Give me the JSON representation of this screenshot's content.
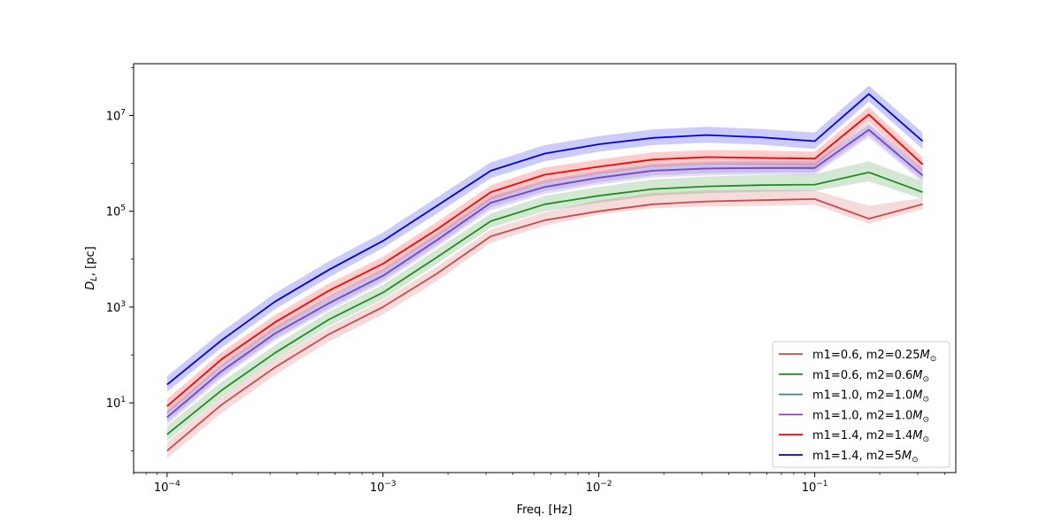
{
  "chart_data": {
    "type": "line",
    "title": "",
    "xlabel": "Freq. [Hz]",
    "ylabel_main": "D",
    "ylabel_sub": "L",
    "ylabel_rest": ", [pc]",
    "x_scale": "log",
    "y_scale": "log",
    "xlim": [
      7e-05,
      0.45
    ],
    "ylim": [
      0.35,
      120000000
    ],
    "grid": false,
    "legend_position": "bottom-right",
    "x_ticks": [
      {
        "value": 0.0001,
        "base": "10",
        "exp": "−4"
      },
      {
        "value": 0.001,
        "base": "10",
        "exp": "−3"
      },
      {
        "value": 0.01,
        "base": "10",
        "exp": "−2"
      },
      {
        "value": 0.1,
        "base": "10",
        "exp": "−1"
      }
    ],
    "y_ticks": [
      {
        "value": 10,
        "base": "10",
        "exp": "1"
      },
      {
        "value": 1000,
        "base": "10",
        "exp": "3"
      },
      {
        "value": 100000,
        "base": "10",
        "exp": "5"
      },
      {
        "value": 10000000,
        "base": "10",
        "exp": "7"
      }
    ],
    "x": [
      0.0001,
      0.000178,
      0.000316,
      0.000562,
      0.001,
      0.00178,
      0.00316,
      0.00562,
      0.01,
      0.0178,
      0.0316,
      0.0562,
      0.1,
      0.178,
      0.316
    ],
    "series": [
      {
        "label_main": "m1=0.6, m2=0.25",
        "label_sub": "⊙",
        "color": "#cd4a4a",
        "values": [
          1.0,
          9,
          55,
          270,
          1000,
          5000,
          30000,
          65000,
          100000,
          140000,
          160000,
          170000,
          180000,
          70000,
          140000
        ],
        "band_low": [
          0.7,
          6,
          38,
          190,
          700,
          3500,
          22000,
          50000,
          85000,
          115000,
          125000,
          130000,
          135000,
          55000,
          110000
        ],
        "band_high": [
          1.5,
          13,
          80,
          380,
          1400,
          7000,
          42000,
          95000,
          170000,
          240000,
          270000,
          280000,
          270000,
          130000,
          190000
        ]
      },
      {
        "label_main": "m1=0.6, m2=0.6",
        "label_sub": "⊙",
        "color": "#228b22",
        "values": [
          2.2,
          18,
          110,
          550,
          2000,
          11000,
          62000,
          140000,
          210000,
          290000,
          330000,
          350000,
          360000,
          650000,
          250000
        ],
        "band_low": [
          1.6,
          13,
          80,
          400,
          1450,
          8000,
          45000,
          100000,
          150000,
          210000,
          240000,
          255000,
          265000,
          420000,
          180000
        ],
        "band_high": [
          3.3,
          27,
          160,
          800,
          2900,
          16000,
          90000,
          210000,
          320000,
          460000,
          530000,
          570000,
          600000,
          1100000,
          420000
        ]
      },
      {
        "label_main": "m1=1.0, m2=1.0",
        "label_sub": "⊙",
        "color": "#2e86ab",
        "values": [
          5,
          45,
          280,
          1200,
          4500,
          25000,
          150000,
          320000,
          500000,
          700000,
          780000,
          800000,
          800000,
          5000000,
          560000
        ],
        "band_low": [
          4,
          36,
          220,
          950,
          3600,
          20000,
          120000,
          260000,
          400000,
          560000,
          620000,
          640000,
          640000,
          4000000,
          450000
        ],
        "band_high": [
          6.5,
          58,
          360,
          1550,
          5800,
          32000,
          190000,
          410000,
          640000,
          900000,
          1000000,
          1020000,
          1020000,
          6400000,
          720000
        ]
      },
      {
        "label_main": "m1=1.0, m2=1.0",
        "label_sub": "⊙",
        "color": "#8b3fd1",
        "values": [
          5,
          45,
          280,
          1200,
          4500,
          25000,
          150000,
          320000,
          500000,
          700000,
          780000,
          800000,
          800000,
          5000000,
          560000
        ],
        "band_low": [
          3.5,
          32,
          200,
          850,
          3200,
          18000,
          105000,
          230000,
          360000,
          500000,
          560000,
          580000,
          580000,
          3500000,
          400000
        ],
        "band_high": [
          7,
          64,
          400,
          1700,
          6400,
          35000,
          210000,
          450000,
          700000,
          980000,
          1090000,
          1120000,
          1120000,
          7000000,
          790000
        ]
      },
      {
        "label_main": "m1=1.4, m2=1.4",
        "label_sub": "⊙",
        "color": "#ff0000",
        "values": [
          8.5,
          80,
          480,
          2200,
          8000,
          42000,
          250000,
          580000,
          850000,
          1200000,
          1350000,
          1300000,
          1250000,
          10500000,
          950000
        ],
        "band_low": [
          6,
          56,
          340,
          1550,
          5600,
          30000,
          175000,
          400000,
          600000,
          850000,
          950000,
          920000,
          880000,
          7500000,
          680000
        ],
        "band_high": [
          12,
          112,
          680,
          3100,
          11200,
          60000,
          350000,
          820000,
          1200000,
          1700000,
          1900000,
          1850000,
          1750000,
          15000000,
          1350000
        ]
      },
      {
        "label_main": "m1=1.4, m2=5",
        "label_sub": "⊙",
        "color": "#0000ee",
        "values": [
          24,
          200,
          1300,
          6000,
          24000,
          130000,
          700000,
          1600000,
          2500000,
          3400000,
          3900000,
          3500000,
          2900000,
          28000000,
          2900000
        ],
        "band_low": [
          17,
          140,
          900,
          4200,
          17000,
          90000,
          490000,
          1100000,
          1750000,
          2400000,
          2700000,
          2450000,
          2000000,
          19500000,
          2000000
        ],
        "band_high": [
          36,
          300,
          1950,
          9000,
          36000,
          195000,
          1050000,
          2400000,
          3700000,
          5100000,
          5800000,
          5200000,
          4400000,
          42000000,
          4400000
        ]
      }
    ]
  }
}
